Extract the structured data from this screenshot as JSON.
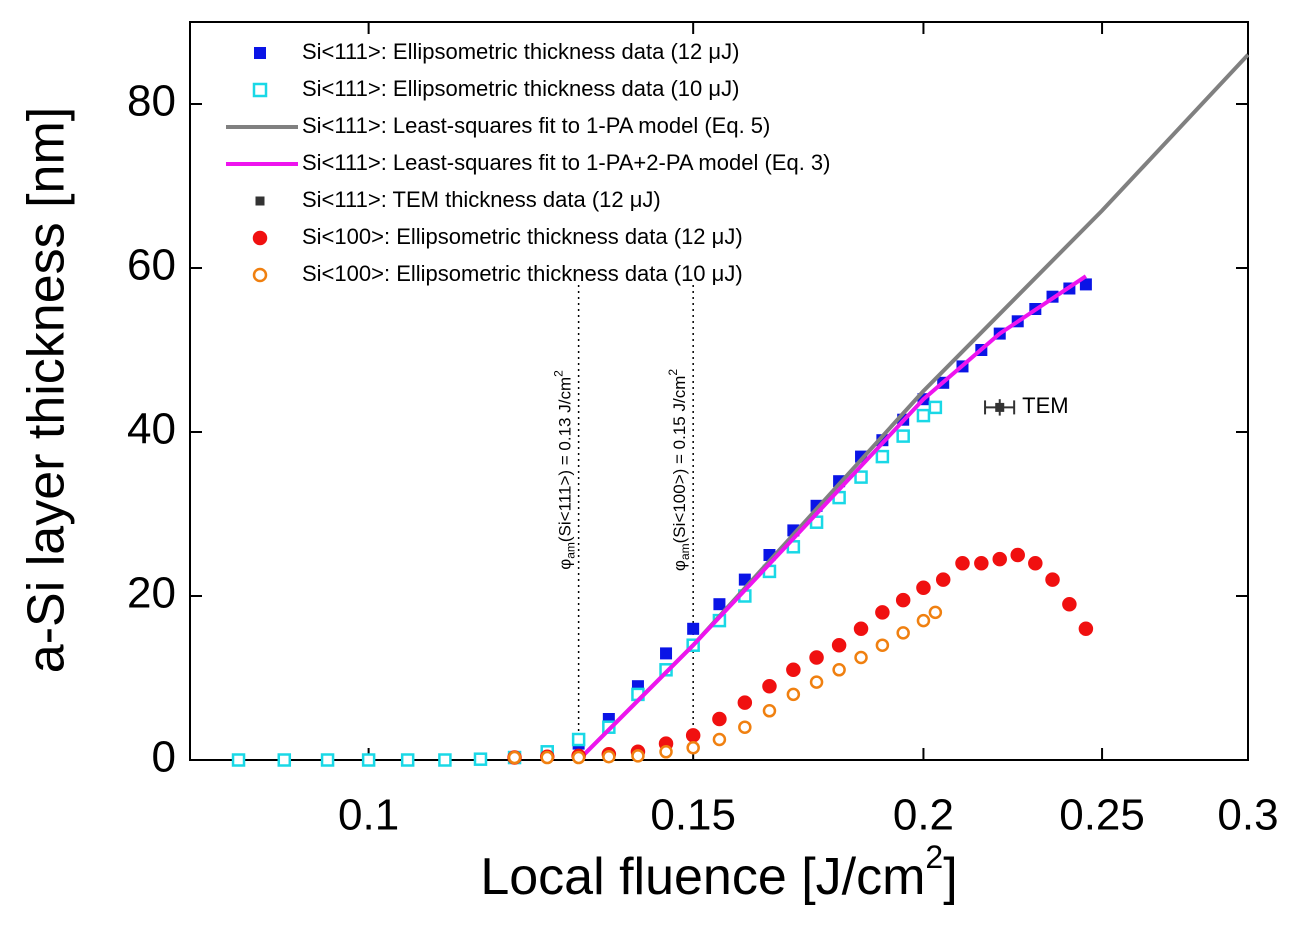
{
  "chart_data": {
    "type": "scatter",
    "xscale": "log",
    "xlabel": {
      "text": "Local fluence  [J/cm",
      "sup": "2",
      "end": "]"
    },
    "ylabel": "a-Si layer thickness  [nm]",
    "xlim": [
      0.08,
      0.3
    ],
    "ylim": [
      0,
      90
    ],
    "xticks": [
      0.1,
      0.15,
      0.2,
      0.25,
      0.3
    ],
    "yticks": [
      0,
      20,
      40,
      60,
      80
    ],
    "legend": "upper left",
    "series": [
      {
        "name": "Si<111>: Ellipsometric thickness data (12 μJ)",
        "color": "#0a14e6",
        "marker": "square",
        "fill": true,
        "x": [
          0.085,
          0.09,
          0.095,
          0.1,
          0.105,
          0.11,
          0.115,
          0.12,
          0.125,
          0.13,
          0.135,
          0.14,
          0.145,
          0.15,
          0.155,
          0.16,
          0.165,
          0.17,
          0.175,
          0.18,
          0.185,
          0.19,
          0.195,
          0.2,
          0.205,
          0.21,
          0.215,
          0.22,
          0.225,
          0.23,
          0.235,
          0.24,
          0.245
        ],
        "values": [
          0,
          0,
          0,
          0,
          0,
          0,
          0.1,
          0.3,
          1,
          2,
          5,
          9,
          13,
          16,
          19,
          22,
          25,
          28,
          31,
          34,
          37,
          39,
          41.5,
          44,
          46,
          48,
          50,
          52,
          53.5,
          55,
          56.5,
          57.5,
          58
        ]
      },
      {
        "name": "Si<111>: Ellipsometric thickness data (10 μJ)",
        "color": "#19d8e6",
        "marker": "square",
        "fill": false,
        "x": [
          0.085,
          0.09,
          0.095,
          0.1,
          0.105,
          0.11,
          0.115,
          0.12,
          0.125,
          0.13,
          0.135,
          0.14,
          0.145,
          0.15,
          0.155,
          0.16,
          0.165,
          0.17,
          0.175,
          0.18,
          0.185,
          0.19,
          0.195,
          0.2,
          0.203
        ],
        "values": [
          0,
          0,
          0,
          0,
          0,
          0,
          0.1,
          0.3,
          1,
          2.5,
          4,
          8,
          11,
          14,
          17,
          20,
          23,
          26,
          29,
          32,
          34.5,
          37,
          39.5,
          42,
          43
        ]
      },
      {
        "name": "Si<111>: Least-squares fit to 1-PA model (Eq. 5)",
        "color": "#808080",
        "marker": "line",
        "x": [
          0.13,
          0.15,
          0.2,
          0.25,
          0.3
        ],
        "values": [
          0,
          14,
          45,
          67,
          86
        ]
      },
      {
        "name": "Si<111>: Least-squares fit to 1-PA+2-PA model (Eq. 3)",
        "color": "#ee14ee",
        "marker": "line",
        "x": [
          0.13,
          0.15,
          0.17,
          0.2,
          0.22,
          0.245
        ],
        "values": [
          0,
          14,
          27,
          44,
          52,
          59
        ]
      },
      {
        "name": "Si<111>: TEM thickness data (12 μJ)",
        "color": "#333333",
        "marker": "small-square",
        "fill": true,
        "x": [
          0.22
        ],
        "values": [
          43
        ],
        "xerr": [
          0.004
        ],
        "yerr": [
          1
        ]
      },
      {
        "name": "Si<100>: Ellipsometric thickness data (12 μJ)",
        "color": "#f01010",
        "marker": "circle",
        "fill": true,
        "x": [
          0.12,
          0.125,
          0.13,
          0.135,
          0.14,
          0.145,
          0.15,
          0.155,
          0.16,
          0.165,
          0.17,
          0.175,
          0.18,
          0.185,
          0.19,
          0.195,
          0.2,
          0.205,
          0.21,
          0.215,
          0.22,
          0.225,
          0.23,
          0.235,
          0.24,
          0.245
        ],
        "values": [
          0.3,
          0.4,
          0.5,
          0.7,
          1,
          2,
          3,
          5,
          7,
          9,
          11,
          12.5,
          14,
          16,
          18,
          19.5,
          21,
          22,
          24,
          24,
          24.5,
          25,
          24,
          22,
          19,
          16
        ]
      },
      {
        "name": "Si<100>: Ellipsometric thickness data (10 μJ)",
        "color": "#f08010",
        "marker": "circle",
        "fill": false,
        "x": [
          0.12,
          0.125,
          0.13,
          0.135,
          0.14,
          0.145,
          0.15,
          0.155,
          0.16,
          0.165,
          0.17,
          0.175,
          0.18,
          0.185,
          0.19,
          0.195,
          0.2,
          0.203
        ],
        "values": [
          0.3,
          0.3,
          0.3,
          0.4,
          0.5,
          1,
          1.5,
          2.5,
          4,
          6,
          8,
          9.5,
          11,
          12.5,
          14,
          15.5,
          17,
          18
        ]
      }
    ],
    "annotations": [
      {
        "x": 0.13,
        "symbol": "φ",
        "sub": "am",
        "text": "(Si<111>) = 0.13 J/cm",
        "sup": "2"
      },
      {
        "x": 0.15,
        "symbol": "φ",
        "sub": "am",
        "text": "(Si<100>) = 0.15 J/cm",
        "sup": "2"
      }
    ],
    "tem_label": "TEM"
  }
}
